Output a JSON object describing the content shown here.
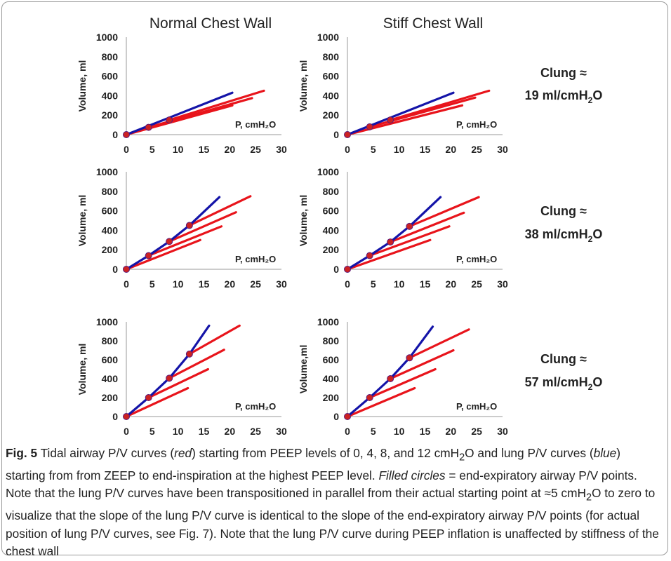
{
  "columns": [
    "Normal Chest Wall",
    "Stiff Chest Wall"
  ],
  "row_labels": [
    {
      "name": "Clung",
      "approx": "≈",
      "value": "19 ml/cmH",
      "sub": "2",
      "end": "O"
    },
    {
      "name": "Clung",
      "approx": "≈",
      "value": "38 ml/cmH",
      "sub": "2",
      "end": "O"
    },
    {
      "name": "Clung",
      "approx": "≈",
      "value": "57 ml/cmH",
      "sub": "2",
      "end": "O"
    }
  ],
  "chart_data": [
    {
      "type": "line",
      "panel": "row1-normal",
      "ylabel": "Volume, ml",
      "xlabel": "P, cmH₂O",
      "xlim": [
        0,
        30
      ],
      "ylim": [
        0,
        1000
      ],
      "xticks": [
        "0",
        "5",
        "10",
        "15",
        "20",
        "25",
        "30"
      ],
      "yticks": [
        "0",
        "200",
        "400",
        "600",
        "800",
        "1000"
      ],
      "series": [
        {
          "color": "#e8141b",
          "x": [
            0,
            20.5
          ],
          "y": [
            0,
            300
          ]
        },
        {
          "color": "#e8141b",
          "x": [
            4.3,
            24.3
          ],
          "y": [
            75,
            375
          ]
        },
        {
          "color": "#e8141b",
          "x": [
            8.3,
            26.6
          ],
          "y": [
            150,
            450
          ]
        },
        {
          "color": "#1414a8",
          "x": [
            0,
            20.5
          ],
          "y": [
            0,
            430
          ]
        }
      ],
      "points": {
        "x": [
          0,
          4.3,
          8.3
        ],
        "y": [
          0,
          75,
          150
        ]
      }
    },
    {
      "type": "line",
      "panel": "row1-stiff",
      "ylabel": "Volume, ml",
      "xlabel": "P, cmH₂O",
      "xlim": [
        0,
        30
      ],
      "ylim": [
        0,
        1000
      ],
      "xticks": [
        "0",
        "5",
        "10",
        "15",
        "20",
        "25",
        "30"
      ],
      "yticks": [
        "0",
        "200",
        "400",
        "600",
        "800",
        "1000"
      ],
      "series": [
        {
          "color": "#e8141b",
          "x": [
            0,
            22.2
          ],
          "y": [
            0,
            300
          ]
        },
        {
          "color": "#e8141b",
          "x": [
            4.3,
            24.7
          ],
          "y": [
            80,
            380
          ]
        },
        {
          "color": "#e8141b",
          "x": [
            8.3,
            27.4
          ],
          "y": [
            150,
            450
          ]
        },
        {
          "color": "#1414a8",
          "x": [
            0,
            20.5
          ],
          "y": [
            0,
            430
          ]
        }
      ],
      "points": {
        "x": [
          0,
          4.3,
          8.3
        ],
        "y": [
          0,
          80,
          150
        ]
      }
    },
    {
      "type": "line",
      "panel": "row2-normal",
      "ylabel": "Volume, ml",
      "xlabel": "P, cmH₂O",
      "xlim": [
        0,
        30
      ],
      "ylim": [
        0,
        1000
      ],
      "xticks": [
        "0",
        "5",
        "10",
        "15",
        "20",
        "25",
        "30"
      ],
      "yticks": [
        "0",
        "200",
        "400",
        "600",
        "800",
        "1000"
      ],
      "series": [
        {
          "color": "#e8141b",
          "x": [
            0,
            14.3
          ],
          "y": [
            0,
            300
          ]
        },
        {
          "color": "#e8141b",
          "x": [
            4.3,
            18.4
          ],
          "y": [
            140,
            440
          ]
        },
        {
          "color": "#e8141b",
          "x": [
            8.3,
            21.2
          ],
          "y": [
            285,
            585
          ]
        },
        {
          "color": "#e8141b",
          "x": [
            12.2,
            24.0
          ],
          "y": [
            450,
            750
          ]
        },
        {
          "color": "#1414a8",
          "x": [
            0,
            4.3,
            8.3,
            12.2,
            18.0
          ],
          "y": [
            0,
            140,
            285,
            450,
            740
          ]
        }
      ],
      "points": {
        "x": [
          0,
          4.3,
          8.3,
          12.2
        ],
        "y": [
          0,
          140,
          285,
          450
        ]
      }
    },
    {
      "type": "line",
      "panel": "row2-stiff",
      "ylabel": "Volume, ml",
      "xlabel": "P, cmH₂O",
      "xlim": [
        0,
        30
      ],
      "ylim": [
        0,
        1000
      ],
      "xticks": [
        "0",
        "5",
        "10",
        "15",
        "20",
        "25",
        "30"
      ],
      "yticks": [
        "0",
        "200",
        "400",
        "600",
        "800",
        "1000"
      ],
      "series": [
        {
          "color": "#e8141b",
          "x": [
            0,
            16.0
          ],
          "y": [
            0,
            300
          ]
        },
        {
          "color": "#e8141b",
          "x": [
            4.3,
            19.7
          ],
          "y": [
            140,
            440
          ]
        },
        {
          "color": "#e8141b",
          "x": [
            8.3,
            22.5
          ],
          "y": [
            280,
            580
          ]
        },
        {
          "color": "#e8141b",
          "x": [
            12.0,
            25.4
          ],
          "y": [
            440,
            740
          ]
        },
        {
          "color": "#1414a8",
          "x": [
            0,
            4.3,
            8.3,
            12.0,
            18.0
          ],
          "y": [
            0,
            140,
            280,
            440,
            740
          ]
        }
      ],
      "points": {
        "x": [
          0,
          4.3,
          8.3,
          12.0
        ],
        "y": [
          0,
          140,
          280,
          440
        ]
      }
    },
    {
      "type": "line",
      "panel": "row3-normal",
      "ylabel": "Volume, ml",
      "xlabel": "P, cmH₂O",
      "xlim": [
        0,
        30
      ],
      "ylim": [
        0,
        1000
      ],
      "xticks": [
        "0",
        "5",
        "10",
        "15",
        "20",
        "25",
        "30"
      ],
      "yticks": [
        "0",
        "200",
        "400",
        "600",
        "800",
        "1000"
      ],
      "series": [
        {
          "color": "#e8141b",
          "x": [
            0,
            11.9
          ],
          "y": [
            0,
            300
          ]
        },
        {
          "color": "#e8141b",
          "x": [
            4.3,
            15.8
          ],
          "y": [
            200,
            500
          ]
        },
        {
          "color": "#e8141b",
          "x": [
            8.3,
            18.9
          ],
          "y": [
            405,
            705
          ]
        },
        {
          "color": "#e8141b",
          "x": [
            12.2,
            21.9
          ],
          "y": [
            660,
            960
          ]
        },
        {
          "color": "#1414a8",
          "x": [
            0,
            4.3,
            8.3,
            12.2,
            16.0
          ],
          "y": [
            0,
            200,
            405,
            660,
            960
          ]
        }
      ],
      "points": {
        "x": [
          0,
          4.3,
          8.3,
          12.2
        ],
        "y": [
          0,
          200,
          405,
          660
        ]
      }
    },
    {
      "type": "line",
      "panel": "row3-stiff",
      "ylabel": "Volume,ml",
      "xlabel": "P, cmH₂O",
      "xlim": [
        0,
        30
      ],
      "ylim": [
        0,
        1000
      ],
      "xticks": [
        "0",
        "5",
        "10",
        "15",
        "20",
        "25",
        "30"
      ],
      "yticks": [
        "0",
        "200",
        "400",
        "600",
        "800",
        "1000"
      ],
      "series": [
        {
          "color": "#e8141b",
          "x": [
            0,
            13.0
          ],
          "y": [
            0,
            300
          ]
        },
        {
          "color": "#e8141b",
          "x": [
            4.3,
            17.0
          ],
          "y": [
            200,
            500
          ]
        },
        {
          "color": "#e8141b",
          "x": [
            8.3,
            20.5
          ],
          "y": [
            400,
            700
          ]
        },
        {
          "color": "#e8141b",
          "x": [
            12.0,
            23.5
          ],
          "y": [
            620,
            920
          ]
        },
        {
          "color": "#1414a8",
          "x": [
            0,
            4.3,
            8.3,
            12.0,
            16.5
          ],
          "y": [
            0,
            200,
            400,
            620,
            950
          ]
        }
      ],
      "points": {
        "x": [
          0,
          4.3,
          8.3,
          12.0
        ],
        "y": [
          0,
          200,
          400,
          620
        ]
      }
    }
  ],
  "caption": {
    "fig": "Fig. 5",
    "t1": " Tidal airway P/V curves (",
    "red": "red",
    "t2": ") starting from PEEP levels of 0, 4, 8, and 12 cmH",
    "sub1": "2",
    "t3": "O and lung P/V curves (",
    "blue": "blue",
    "t4": ") starting from from ZEEP to end-inspiration at the highest PEEP level. ",
    "filled": "Filled circles",
    "t5": " = end-expiratory airway P/V points. Note that the lung P/V curves have been transpositioned in parallel from their actual starting point at ≈5 cmH",
    "sub2": "2",
    "t6": "O to zero to visualize that the slope of the lung P/V curve is identical to the slope of the end-expiratory airway P/V points (for actual position of lung P/V curves, see Fig. 7). Note that the lung P/V curve during PEEP inflation is unaffected by stiffness of the chest wall"
  }
}
